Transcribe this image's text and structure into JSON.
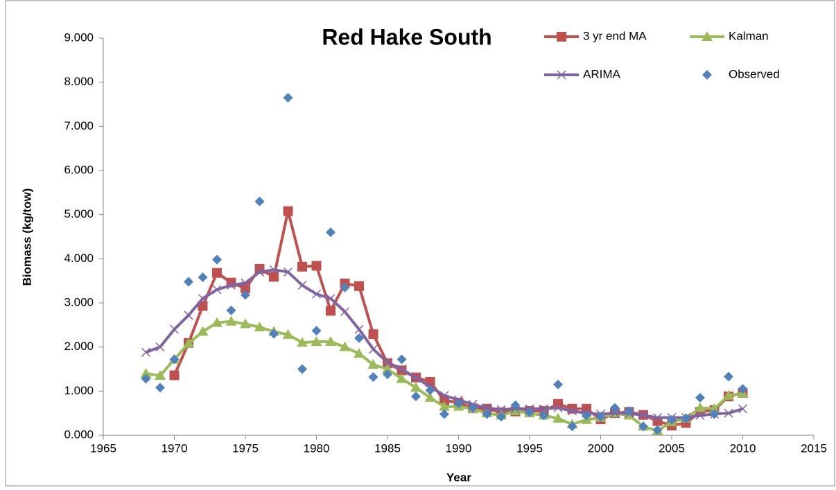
{
  "chart_data": {
    "type": "line",
    "title": "Red Hake South",
    "x_label": "Year",
    "y_label": "Biomass (kg/tow)",
    "x": [
      1968,
      1969,
      1970,
      1971,
      1972,
      1973,
      1974,
      1975,
      1976,
      1977,
      1978,
      1979,
      1980,
      1981,
      1982,
      1983,
      1984,
      1985,
      1986,
      1987,
      1988,
      1989,
      1990,
      1991,
      1992,
      1993,
      1994,
      1995,
      1996,
      1997,
      1998,
      1999,
      2000,
      2001,
      2002,
      2003,
      2004,
      2005,
      2006,
      2007,
      2008,
      2009,
      2010
    ],
    "series": [
      {
        "name": "3 yr end MA",
        "color": "#c0504d",
        "marker": "square",
        "line": true,
        "values": [
          null,
          null,
          1.36,
          2.09,
          2.93,
          3.68,
          3.46,
          3.33,
          3.77,
          3.59,
          5.08,
          3.82,
          3.84,
          2.82,
          3.44,
          3.38,
          2.29,
          1.63,
          1.47,
          1.31,
          1.21,
          0.79,
          0.74,
          0.61,
          0.6,
          0.52,
          0.54,
          0.55,
          0.55,
          0.71,
          0.6,
          0.6,
          0.36,
          0.5,
          0.53,
          0.46,
          0.32,
          0.22,
          0.28,
          0.53,
          0.57,
          0.88,
          0.96
        ]
      },
      {
        "name": "Kalman",
        "color": "#9bbb59",
        "marker": "triangle",
        "line": true,
        "values": [
          1.4,
          1.35,
          1.72,
          2.08,
          2.35,
          2.55,
          2.58,
          2.52,
          2.45,
          2.35,
          2.28,
          2.1,
          2.12,
          2.12,
          2.0,
          1.85,
          1.6,
          1.5,
          1.28,
          1.08,
          0.85,
          0.65,
          0.65,
          0.6,
          0.5,
          0.45,
          0.55,
          0.5,
          0.45,
          0.38,
          0.25,
          0.35,
          0.4,
          0.5,
          0.45,
          0.2,
          0.1,
          0.3,
          0.38,
          0.62,
          0.6,
          0.9,
          0.95
        ]
      },
      {
        "name": "ARIMA",
        "color": "#8064a2",
        "marker": "x",
        "line": true,
        "values": [
          1.88,
          2.0,
          2.4,
          2.72,
          3.1,
          3.3,
          3.4,
          3.45,
          3.7,
          3.75,
          3.7,
          3.4,
          3.2,
          3.1,
          2.8,
          2.4,
          1.95,
          1.65,
          1.5,
          1.3,
          1.1,
          0.9,
          0.8,
          0.7,
          0.62,
          0.58,
          0.6,
          0.6,
          0.6,
          0.62,
          0.55,
          0.5,
          0.48,
          0.5,
          0.5,
          0.45,
          0.4,
          0.4,
          0.4,
          0.45,
          0.48,
          0.5,
          0.6
        ]
      },
      {
        "name": "Observed",
        "color": "#4f81bd",
        "marker": "diamond",
        "line": false,
        "values": [
          1.28,
          1.08,
          1.72,
          3.48,
          3.58,
          3.98,
          2.83,
          3.18,
          5.3,
          2.3,
          7.65,
          1.5,
          2.37,
          4.6,
          3.35,
          2.2,
          1.32,
          1.38,
          1.72,
          0.88,
          1.02,
          0.48,
          0.72,
          0.62,
          0.48,
          0.42,
          0.68,
          0.52,
          0.45,
          1.15,
          0.2,
          0.45,
          0.42,
          0.62,
          0.55,
          0.2,
          0.12,
          0.35,
          0.38,
          0.85,
          0.48,
          1.33,
          1.05
        ]
      }
    ],
    "xlim": [
      1965,
      2015
    ],
    "xticks": [
      1965,
      1970,
      1975,
      1980,
      1985,
      1990,
      1995,
      2000,
      2005,
      2010,
      2015
    ],
    "ylim": [
      0,
      9
    ],
    "yticks": [
      {
        "value": 0,
        "label": "0.000"
      },
      {
        "value": 1,
        "label": "1.000"
      },
      {
        "value": 2,
        "label": "2.000"
      },
      {
        "value": 3,
        "label": "3.000"
      },
      {
        "value": 4,
        "label": "4.000"
      },
      {
        "value": 5,
        "label": "5.000"
      },
      {
        "value": 6,
        "label": "6.000"
      },
      {
        "value": 7,
        "label": "7.000"
      },
      {
        "value": 8,
        "label": "8.000"
      },
      {
        "value": 9,
        "label": "9.000"
      }
    ],
    "grid": false,
    "legend": "top-right"
  }
}
